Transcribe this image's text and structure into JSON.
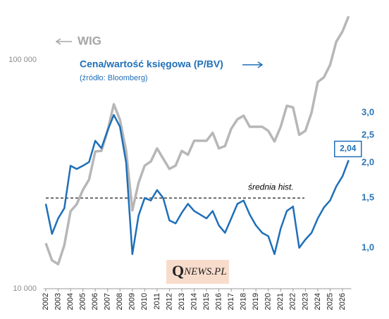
{
  "chart_data": {
    "type": "line",
    "legend_wig": "WIG",
    "legend_pbv": "Cena/wartość księgowa (P/BV)",
    "source": "(źródło: Bloomberg)",
    "logo_q": "Q",
    "logo_rest": "NEWS.PL",
    "x": [
      2002,
      2002.5,
      2003,
      2003.5,
      2004,
      2004.5,
      2005,
      2005.5,
      2006,
      2006.5,
      2007,
      2007.5,
      2008,
      2008.5,
      2009,
      2009.5,
      2010,
      2010.5,
      2011,
      2011.5,
      2012,
      2012.5,
      2013,
      2013.5,
      2014,
      2014.5,
      2015,
      2015.5,
      2016,
      2016.5,
      2017,
      2017.5,
      2018,
      2018.5,
      2019,
      2019.5,
      2020,
      2020.5,
      2021,
      2021.5,
      2022,
      2022.5,
      2023,
      2023.5,
      2024,
      2024.5,
      2025,
      2025.5,
      2026,
      2026.5
    ],
    "xlim": [
      2002,
      2026.6
    ],
    "xticks": [
      2002,
      2003,
      2004,
      2005,
      2006,
      2007,
      2008,
      2009,
      2010,
      2011,
      2012,
      2013,
      2014,
      2015,
      2016,
      2017,
      2018,
      2019,
      2020,
      2021,
      2022,
      2023,
      2024,
      2025,
      2026
    ],
    "ylog": true,
    "ylim": [
      10000,
      180000
    ],
    "yticks": [
      {
        "value": 10000,
        "label": "10 000"
      },
      {
        "value": 100000,
        "label": "100 000"
      }
    ],
    "y2log": true,
    "y2lim": [
      0.717,
      7.43
    ],
    "y2ticks": [
      {
        "value": 1.0,
        "label": "1,0"
      },
      {
        "value": 1.5,
        "label": "1,5"
      },
      {
        "value": 2.0,
        "label": "2,0"
      },
      {
        "value": 2.5,
        "label": "2,5"
      },
      {
        "value": 3.0,
        "label": "3,0"
      }
    ],
    "series": [
      {
        "name": "WIG",
        "color": "#b7b7b7",
        "values": [
          15800,
          13300,
          12800,
          15500,
          21800,
          23400,
          27000,
          30000,
          39800,
          40000,
          49000,
          64000,
          54700,
          40000,
          22000,
          29000,
          34500,
          36000,
          41000,
          37000,
          33400,
          34500,
          40000,
          38500,
          44300,
          44300,
          44300,
          48000,
          41000,
          42000,
          50000,
          55000,
          57000,
          51000,
          51000,
          51000,
          49000,
          44000,
          51000,
          63000,
          62000,
          47000,
          49000,
          58800,
          80000,
          84000,
          95000,
          120000,
          133000,
          155000
        ]
      },
      {
        "name": "P/BV",
        "color": "#1f6fb8",
        "axis": "y2",
        "values": [
          1.43,
          1.12,
          1.27,
          1.38,
          1.95,
          1.9,
          1.95,
          2.01,
          2.39,
          2.25,
          2.6,
          2.95,
          2.68,
          2.0,
          0.95,
          1.3,
          1.5,
          1.47,
          1.6,
          1.5,
          1.25,
          1.22,
          1.33,
          1.43,
          1.35,
          1.31,
          1.27,
          1.35,
          1.2,
          1.13,
          1.27,
          1.43,
          1.47,
          1.31,
          1.2,
          1.13,
          1.1,
          0.95,
          1.17,
          1.35,
          1.4,
          1.0,
          1.07,
          1.13,
          1.27,
          1.39,
          1.47,
          1.65,
          1.79,
          2.04
        ]
      }
    ],
    "reference_line": {
      "value": 1.5,
      "label": "średnia hist."
    },
    "last_value_callout": {
      "value": 2.04,
      "label": "2,04"
    }
  }
}
